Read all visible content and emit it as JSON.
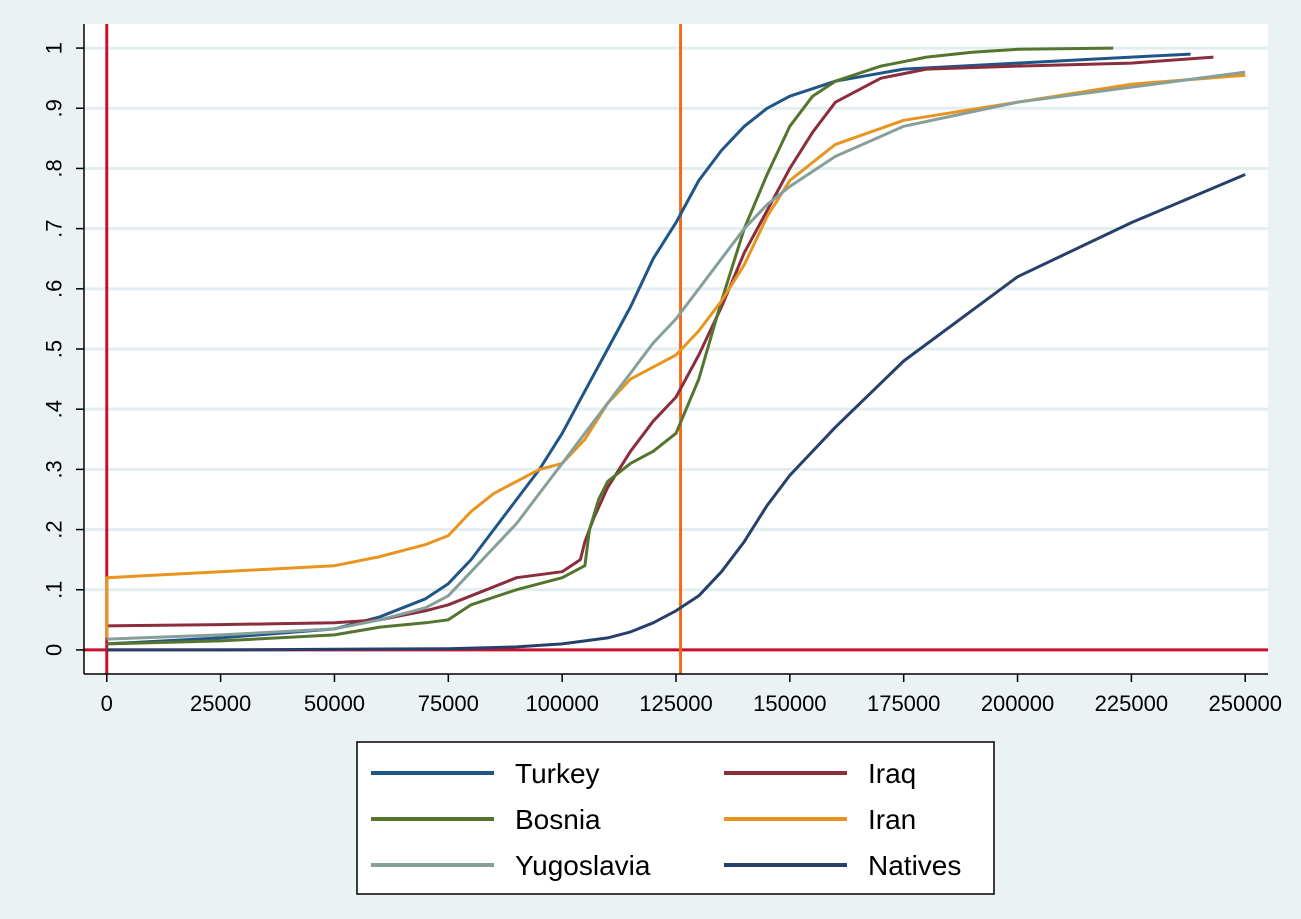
{
  "chart_data": {
    "type": "line",
    "title": "",
    "xlabel": "",
    "ylabel": "",
    "xlim": [
      -5000,
      255000
    ],
    "ylim": [
      -0.04,
      1.04
    ],
    "grid": true,
    "legend_placement": "bottom",
    "x_ticks": [
      0,
      25000,
      50000,
      75000,
      100000,
      125000,
      150000,
      175000,
      200000,
      225000,
      250000
    ],
    "x_tick_labels": [
      "0",
      "25000",
      "50000",
      "75000",
      "100000",
      "125000",
      "150000",
      "175000",
      "200000",
      "225000",
      "250000"
    ],
    "y_ticks": [
      0,
      0.1,
      0.2,
      0.3,
      0.4,
      0.5,
      0.6,
      0.7,
      0.8,
      0.9,
      1
    ],
    "y_tick_labels": [
      "0",
      ".1",
      ".2",
      ".3",
      ".4",
      ".5",
      ".6",
      ".7",
      ".8",
      ".9",
      "1"
    ],
    "reference_lines": [
      {
        "orientation": "vertical",
        "value": 0,
        "color": "#c8102e"
      },
      {
        "orientation": "horizontal",
        "value": 0,
        "color": "#c8102e"
      },
      {
        "orientation": "vertical",
        "value": 126000,
        "color": "#f26a1b"
      }
    ],
    "series": [
      {
        "name": "Turkey",
        "color": "#1f5587",
        "x": [
          0,
          25000,
          50000,
          60000,
          70000,
          75000,
          80000,
          85000,
          90000,
          95000,
          100000,
          105000,
          110000,
          115000,
          120000,
          125000,
          130000,
          135000,
          140000,
          145000,
          150000,
          160000,
          175000,
          200000,
          225000,
          238000
        ],
        "y": [
          0.01,
          0.02,
          0.035,
          0.055,
          0.085,
          0.11,
          0.15,
          0.2,
          0.25,
          0.3,
          0.36,
          0.43,
          0.5,
          0.57,
          0.65,
          0.71,
          0.78,
          0.83,
          0.87,
          0.9,
          0.92,
          0.945,
          0.965,
          0.975,
          0.985,
          0.99
        ]
      },
      {
        "name": "Iraq",
        "color": "#8b2d3c",
        "x": [
          0,
          25000,
          50000,
          60000,
          70000,
          75000,
          80000,
          90000,
          100000,
          104000,
          105000,
          107000,
          110000,
          115000,
          120000,
          125000,
          130000,
          135000,
          140000,
          145000,
          150000,
          155000,
          160000,
          170000,
          180000,
          200000,
          225000,
          243000
        ],
        "y": [
          0.04,
          0.042,
          0.045,
          0.05,
          0.065,
          0.075,
          0.09,
          0.12,
          0.13,
          0.15,
          0.18,
          0.22,
          0.27,
          0.33,
          0.38,
          0.42,
          0.49,
          0.57,
          0.66,
          0.73,
          0.8,
          0.86,
          0.91,
          0.95,
          0.965,
          0.97,
          0.975,
          0.985
        ]
      },
      {
        "name": "Bosnia",
        "color": "#55752f",
        "x": [
          0,
          25000,
          50000,
          60000,
          70000,
          75000,
          80000,
          90000,
          100000,
          105000,
          106000,
          108000,
          110000,
          115000,
          120000,
          125000,
          130000,
          135000,
          140000,
          145000,
          150000,
          155000,
          160000,
          170000,
          180000,
          190000,
          200000,
          221000
        ],
        "y": [
          0.01,
          0.015,
          0.025,
          0.038,
          0.045,
          0.05,
          0.075,
          0.1,
          0.12,
          0.14,
          0.2,
          0.25,
          0.28,
          0.31,
          0.33,
          0.36,
          0.45,
          0.58,
          0.7,
          0.79,
          0.87,
          0.92,
          0.945,
          0.97,
          0.985,
          0.993,
          0.998,
          1.0
        ]
      },
      {
        "name": "Iran",
        "color": "#e8941e",
        "x": [
          0,
          0,
          25000,
          50000,
          60000,
          70000,
          75000,
          80000,
          85000,
          90000,
          95000,
          100000,
          105000,
          110000,
          115000,
          120000,
          125000,
          130000,
          135000,
          140000,
          145000,
          150000,
          155000,
          160000,
          175000,
          200000,
          225000,
          250000
        ],
        "y": [
          0.02,
          0.12,
          0.13,
          0.14,
          0.155,
          0.175,
          0.19,
          0.23,
          0.26,
          0.28,
          0.3,
          0.31,
          0.35,
          0.41,
          0.45,
          0.47,
          0.49,
          0.53,
          0.58,
          0.64,
          0.72,
          0.78,
          0.81,
          0.84,
          0.88,
          0.91,
          0.94,
          0.955
        ]
      },
      {
        "name": "Yugoslavia",
        "color": "#879f9b",
        "x": [
          0,
          25000,
          50000,
          60000,
          70000,
          75000,
          80000,
          85000,
          90000,
          95000,
          100000,
          105000,
          110000,
          115000,
          120000,
          125000,
          130000,
          135000,
          140000,
          145000,
          150000,
          160000,
          175000,
          200000,
          225000,
          250000
        ],
        "y": [
          0.018,
          0.025,
          0.035,
          0.05,
          0.07,
          0.09,
          0.13,
          0.17,
          0.21,
          0.26,
          0.31,
          0.36,
          0.41,
          0.46,
          0.51,
          0.55,
          0.6,
          0.65,
          0.7,
          0.74,
          0.77,
          0.82,
          0.87,
          0.91,
          0.935,
          0.96
        ]
      },
      {
        "name": "Natives",
        "color": "#27406b",
        "x": [
          0,
          25000,
          50000,
          75000,
          90000,
          100000,
          110000,
          115000,
          120000,
          125000,
          130000,
          135000,
          140000,
          145000,
          150000,
          160000,
          175000,
          200000,
          225000,
          250000
        ],
        "y": [
          0.0,
          0.0,
          0.001,
          0.002,
          0.005,
          0.01,
          0.02,
          0.03,
          0.045,
          0.065,
          0.09,
          0.13,
          0.18,
          0.24,
          0.29,
          0.37,
          0.48,
          0.62,
          0.71,
          0.79
        ]
      }
    ]
  }
}
